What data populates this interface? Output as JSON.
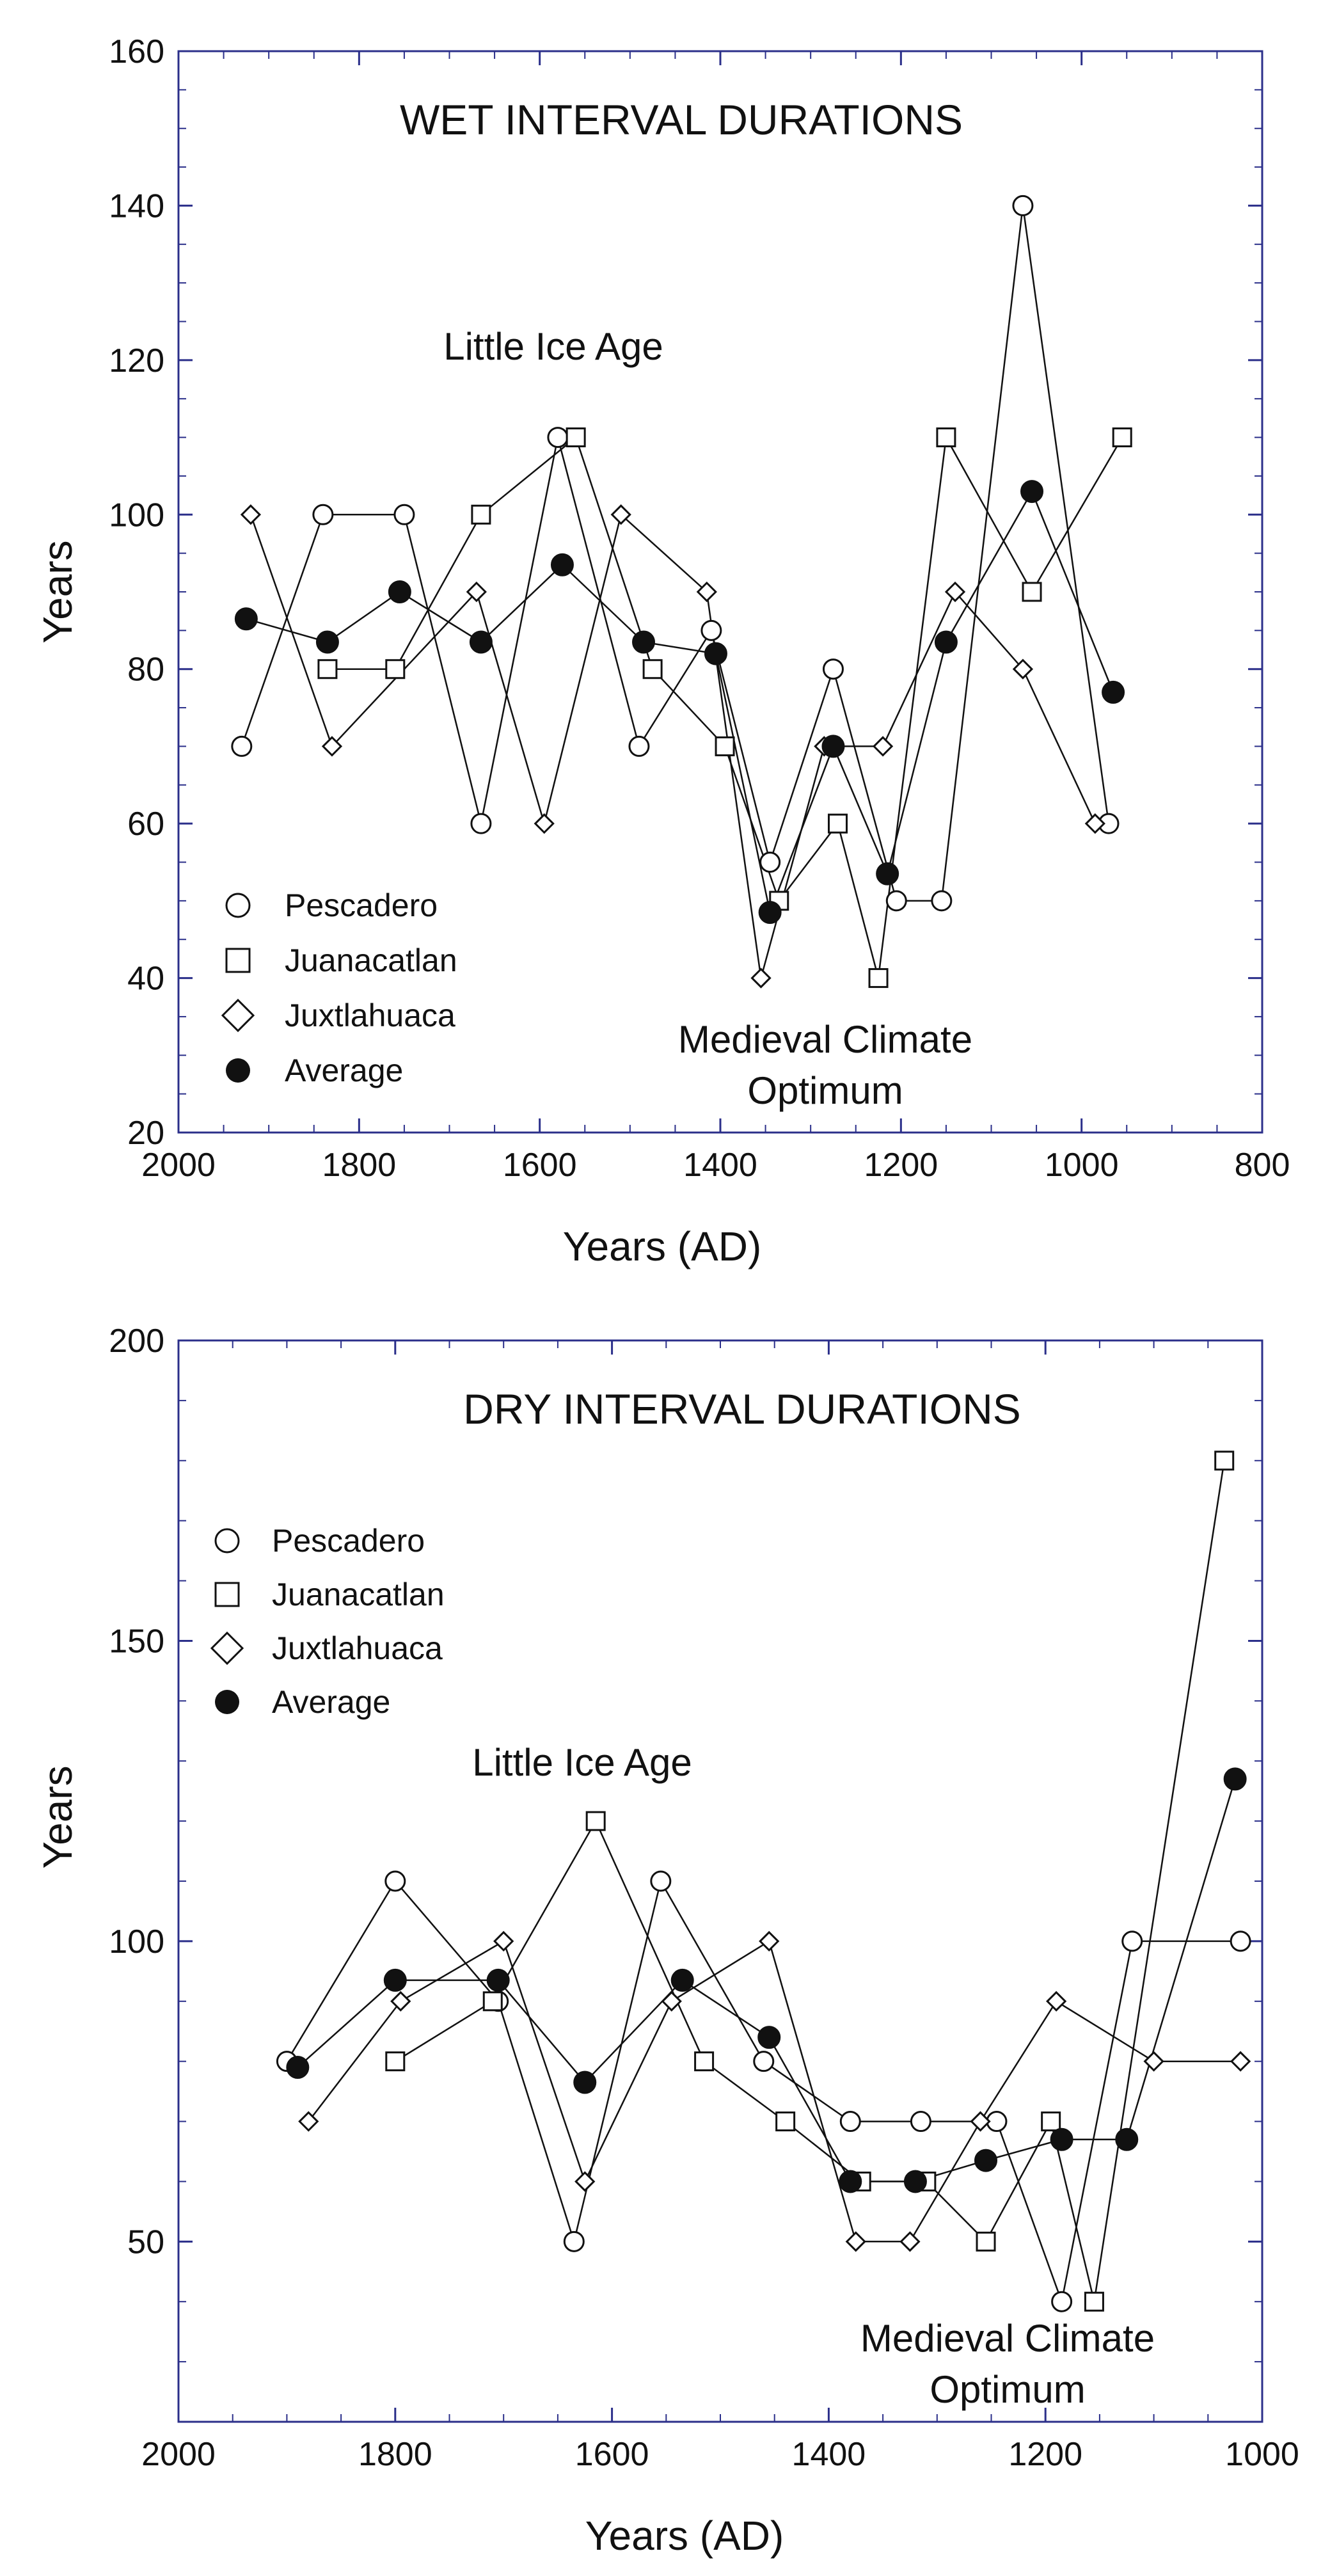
{
  "chart_data": [
    {
      "type": "line",
      "title": "WET INTERVAL DURATIONS",
      "xlabel": "Years (AD)",
      "ylabel": "Years",
      "xlim": [
        2000,
        800
      ],
      "ylim": [
        20,
        160
      ],
      "x_ticks": [
        2000,
        1800,
        1600,
        1400,
        1200,
        1000,
        800
      ],
      "y_ticks": [
        20,
        40,
        60,
        80,
        100,
        120,
        140,
        160
      ],
      "annotations": [
        {
          "id": "lia",
          "lines": [
            "Little Ice Age"
          ]
        },
        {
          "id": "mco",
          "lines": [
            "Medieval Climate",
            "Optimum"
          ]
        }
      ],
      "series": [
        {
          "name": "Pescadero",
          "marker": "open-circle",
          "x": [
            1930,
            1840,
            1750,
            1665,
            1580,
            1490,
            1410,
            1345,
            1275,
            1205,
            1155,
            1065,
            970
          ],
          "y": [
            70,
            100,
            100,
            60,
            110,
            70,
            85,
            55,
            80,
            50,
            50,
            140,
            60
          ]
        },
        {
          "name": "Juanacatlan",
          "marker": "open-square",
          "x": [
            1835,
            1760,
            1665,
            1560,
            1475,
            1395,
            1335,
            1270,
            1225,
            1150,
            1055,
            955
          ],
          "y": [
            80,
            80,
            100,
            110,
            80,
            70,
            50,
            60,
            40,
            110,
            90,
            110
          ]
        },
        {
          "name": "Juxtlahuaca",
          "marker": "open-diamond",
          "x": [
            1920,
            1830,
            1670,
            1595,
            1510,
            1415,
            1355,
            1285,
            1220,
            1140,
            1065,
            985
          ],
          "y": [
            100,
            70,
            90,
            60,
            100,
            90,
            40,
            70,
            70,
            90,
            80,
            60
          ]
        },
        {
          "name": "Average",
          "marker": "filled-circle",
          "x": [
            1925,
            1835,
            1755,
            1665,
            1575,
            1485,
            1405,
            1345,
            1275,
            1215,
            1150,
            1055,
            965
          ],
          "y": [
            86.5,
            83.5,
            90,
            83.5,
            93.5,
            83.5,
            82,
            48.5,
            70,
            53.5,
            83.5,
            103,
            77
          ]
        }
      ]
    },
    {
      "type": "line",
      "title": "DRY INTERVAL DURATIONS",
      "xlabel": "Years (AD)",
      "ylabel": "Years",
      "xlim": [
        2000,
        1000
      ],
      "ylim": [
        20,
        200
      ],
      "x_ticks": [
        2000,
        1800,
        1600,
        1400,
        1200,
        1000
      ],
      "y_ticks": [
        50,
        100,
        150,
        200
      ],
      "annotations": [
        {
          "id": "lia",
          "lines": [
            "Little Ice Age"
          ]
        },
        {
          "id": "mco",
          "lines": [
            "Medieval Climate",
            "Optimum"
          ]
        }
      ],
      "series": [
        {
          "name": "Pescadero",
          "marker": "open-circle",
          "x": [
            1900,
            1800,
            1705,
            1635,
            1555,
            1460,
            1380,
            1315,
            1245,
            1185,
            1120,
            1020
          ],
          "y": [
            80,
            110,
            90,
            50,
            110,
            80,
            70,
            70,
            70,
            40,
            100,
            100
          ]
        },
        {
          "name": "Juanacatlan",
          "marker": "open-square",
          "x": [
            1800,
            1710,
            1615,
            1515,
            1440,
            1370,
            1310,
            1255,
            1195,
            1155,
            1035
          ],
          "y": [
            80,
            90,
            120,
            80,
            70,
            60,
            60,
            50,
            70,
            40,
            180
          ]
        },
        {
          "name": "Juxtlahuaca",
          "marker": "open-diamond",
          "x": [
            1880,
            1795,
            1700,
            1625,
            1545,
            1455,
            1375,
            1325,
            1260,
            1190,
            1100,
            1020
          ],
          "y": [
            70,
            90,
            100,
            60,
            90,
            100,
            50,
            50,
            70,
            90,
            80,
            80
          ]
        },
        {
          "name": "Average",
          "marker": "filled-circle",
          "x": [
            1890,
            1800,
            1705,
            1625,
            1535,
            1455,
            1380,
            1320,
            1255,
            1185,
            1125,
            1025
          ],
          "y": [
            79,
            93.5,
            93.5,
            76.5,
            93.5,
            84,
            60,
            60,
            63.5,
            67,
            67,
            127
          ]
        }
      ]
    }
  ]
}
